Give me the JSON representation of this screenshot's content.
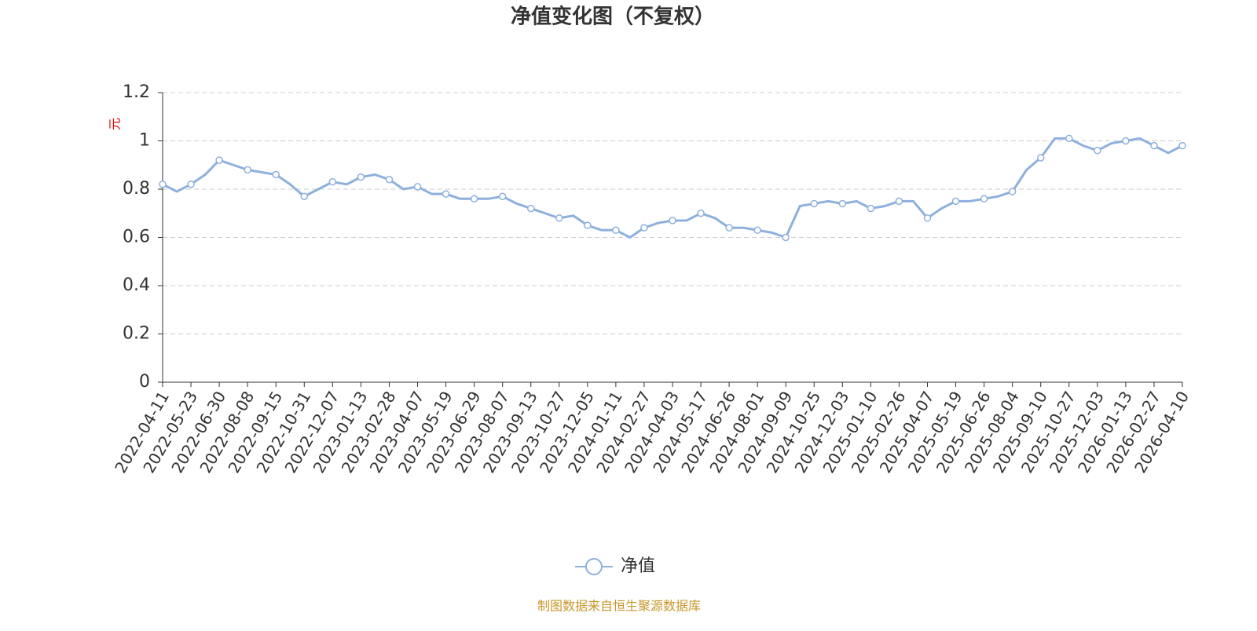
{
  "chart_data": {
    "type": "line",
    "title": "净值变化图（不复权）",
    "y_label": "元",
    "categories": [
      "2022-04-11",
      null,
      "2022-05-23",
      null,
      "2022-06-30",
      null,
      "2022-08-08",
      null,
      "2022-09-15",
      null,
      "2022-10-31",
      null,
      "2022-12-07",
      null,
      "2023-01-13",
      null,
      "2023-02-28",
      null,
      "2023-04-07",
      null,
      "2023-05-19",
      null,
      "2023-06-29",
      null,
      "2023-08-07",
      null,
      "2023-09-13",
      null,
      "2023-10-27",
      null,
      "2023-12-05",
      null,
      "2024-01-11",
      null,
      "2024-02-27",
      null,
      "2024-04-03",
      null,
      "2024-05-17",
      null,
      "2024-06-26",
      null,
      "2024-08-01",
      null,
      "2024-09-09",
      null,
      "2024-10-25",
      null,
      "2024-12-03",
      null,
      "2025-01-10",
      null,
      "2025-02-26",
      null,
      "2025-04-07",
      null,
      "2025-05-19",
      null,
      "2025-06-26",
      null,
      "2025-08-04",
      null,
      "2025-09-10",
      null,
      "2025-10-27",
      null,
      "2025-12-03",
      null,
      "2026-01-13",
      null,
      "2026-02-27",
      null,
      "2026-04-10"
    ],
    "series": [
      {
        "name": "净值",
        "color": "#8eb0dd",
        "values": [
          0.82,
          0.79,
          0.82,
          0.86,
          0.92,
          0.9,
          0.88,
          0.87,
          0.86,
          0.82,
          0.77,
          0.8,
          0.83,
          0.82,
          0.85,
          0.86,
          0.84,
          0.8,
          0.81,
          0.78,
          0.78,
          0.76,
          0.76,
          0.76,
          0.77,
          0.74,
          0.72,
          0.7,
          0.68,
          0.69,
          0.65,
          0.63,
          0.63,
          0.6,
          0.64,
          0.66,
          0.67,
          0.67,
          0.7,
          0.68,
          0.64,
          0.64,
          0.63,
          0.62,
          0.6,
          0.73,
          0.74,
          0.75,
          0.74,
          0.75,
          0.72,
          0.73,
          0.75,
          0.75,
          0.68,
          0.72,
          0.75,
          0.75,
          0.76,
          0.77,
          0.79,
          0.88,
          0.93,
          1.01,
          1.01,
          0.98,
          0.96,
          0.99,
          1.0,
          1.01,
          0.98,
          0.95,
          0.98
        ]
      }
    ],
    "ylim": [
      0,
      1.2
    ],
    "yticks": [
      0,
      0.2,
      0.4,
      0.6,
      0.8,
      1,
      1.2
    ],
    "grid": true,
    "legend": "bottom",
    "source": "制图数据来自恒生聚源数据库"
  }
}
